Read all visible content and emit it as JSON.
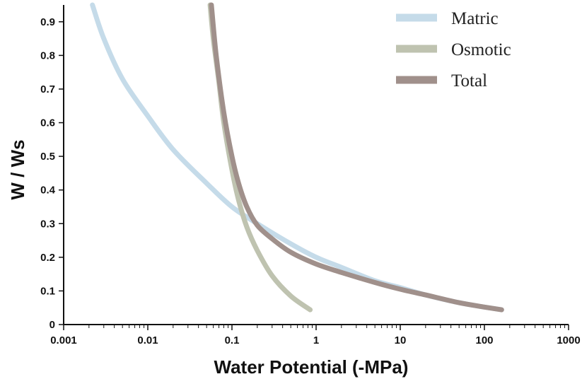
{
  "chart_data": {
    "type": "line",
    "xlabel": "Water Potential (-MPa)",
    "ylabel": "W / Ws",
    "x_scale": "log",
    "xlim": [
      0.001,
      1000
    ],
    "ylim": [
      0,
      0.95
    ],
    "x_ticks": [
      0.001,
      0.01,
      0.1,
      1,
      10,
      100,
      1000
    ],
    "x_tick_labels": [
      "0.001",
      "0.01",
      "0.1",
      "1",
      "10",
      "100",
      "1000"
    ],
    "y_ticks": [
      0,
      0.1,
      0.2,
      0.3,
      0.4,
      0.5,
      0.6,
      0.7,
      0.8,
      0.9
    ],
    "y_tick_labels": [
      "0",
      "0.1",
      "0.2",
      "0.3",
      "0.4",
      "0.5",
      "0.6",
      "0.7",
      "0.8",
      "0.9"
    ],
    "grid": false,
    "legend_position": "top-right",
    "series": [
      {
        "name": "Matric",
        "color": "#c5dbe9",
        "x": [
          0.0022,
          0.003,
          0.005,
          0.01,
          0.02,
          0.05,
          0.1,
          0.2,
          0.5,
          1,
          2,
          5,
          10,
          20,
          50,
          100,
          160
        ],
        "y": [
          0.95,
          0.85,
          0.73,
          0.62,
          0.52,
          0.42,
          0.35,
          0.3,
          0.24,
          0.2,
          0.17,
          0.13,
          0.11,
          0.088,
          0.065,
          0.052,
          0.044
        ]
      },
      {
        "name": "Osmotic",
        "color": "#bfc3b0",
        "x": [
          0.055,
          0.06,
          0.07,
          0.08,
          0.1,
          0.12,
          0.15,
          0.2,
          0.3,
          0.5,
          0.85
        ],
        "y": [
          0.95,
          0.85,
          0.72,
          0.6,
          0.46,
          0.37,
          0.29,
          0.22,
          0.145,
          0.085,
          0.044
        ]
      },
      {
        "name": "Total",
        "color": "#a0908b",
        "x": [
          0.057,
          0.065,
          0.08,
          0.1,
          0.12,
          0.15,
          0.2,
          0.3,
          0.5,
          1,
          2,
          5,
          10,
          20,
          50,
          100,
          160
        ],
        "y": [
          0.95,
          0.8,
          0.63,
          0.5,
          0.42,
          0.35,
          0.295,
          0.255,
          0.215,
          0.18,
          0.155,
          0.125,
          0.105,
          0.088,
          0.065,
          0.052,
          0.044
        ]
      }
    ]
  }
}
